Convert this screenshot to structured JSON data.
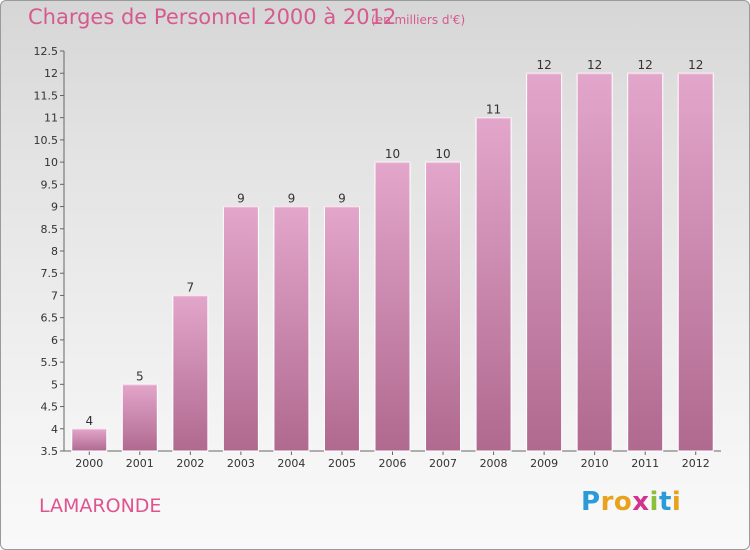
{
  "title": "Charges de Personnel 2000 à 2012",
  "subtitle": "(en milliers d'€)",
  "location": "LAMARONDE",
  "logo": {
    "letters": [
      "P",
      "r",
      "o",
      "x",
      "i",
      "t",
      "i"
    ],
    "colors": [
      "#2a9bd8",
      "#e8a21b",
      "#e8a21b",
      "#d2338c",
      "#8bc03c",
      "#2a9bd8",
      "#e8a21b"
    ]
  },
  "colors": {
    "bar_top": "#e3a6cb",
    "bar_bottom": "#b0698f",
    "title": "#d65a8f"
  },
  "chart_data": {
    "type": "bar",
    "title": "Charges de Personnel 2000 à 2012",
    "subtitle": "(en milliers d'€)",
    "categories": [
      "2000",
      "2001",
      "2002",
      "2003",
      "2004",
      "2005",
      "2006",
      "2007",
      "2008",
      "2009",
      "2010",
      "2011",
      "2012"
    ],
    "values": [
      4,
      5,
      7,
      9,
      9,
      9,
      10,
      10,
      11,
      12,
      12,
      12,
      12
    ],
    "ylim": [
      3.5,
      12.5
    ],
    "yticks": [
      "3.5",
      "4",
      "4.5",
      "5",
      "5.5",
      "6",
      "6.5",
      "7",
      "7.5",
      "8",
      "8.5",
      "9",
      "9.5",
      "10",
      "10.5",
      "11",
      "11.5",
      "12",
      "12.5"
    ],
    "xlabel": "",
    "ylabel": "",
    "grid": false
  }
}
